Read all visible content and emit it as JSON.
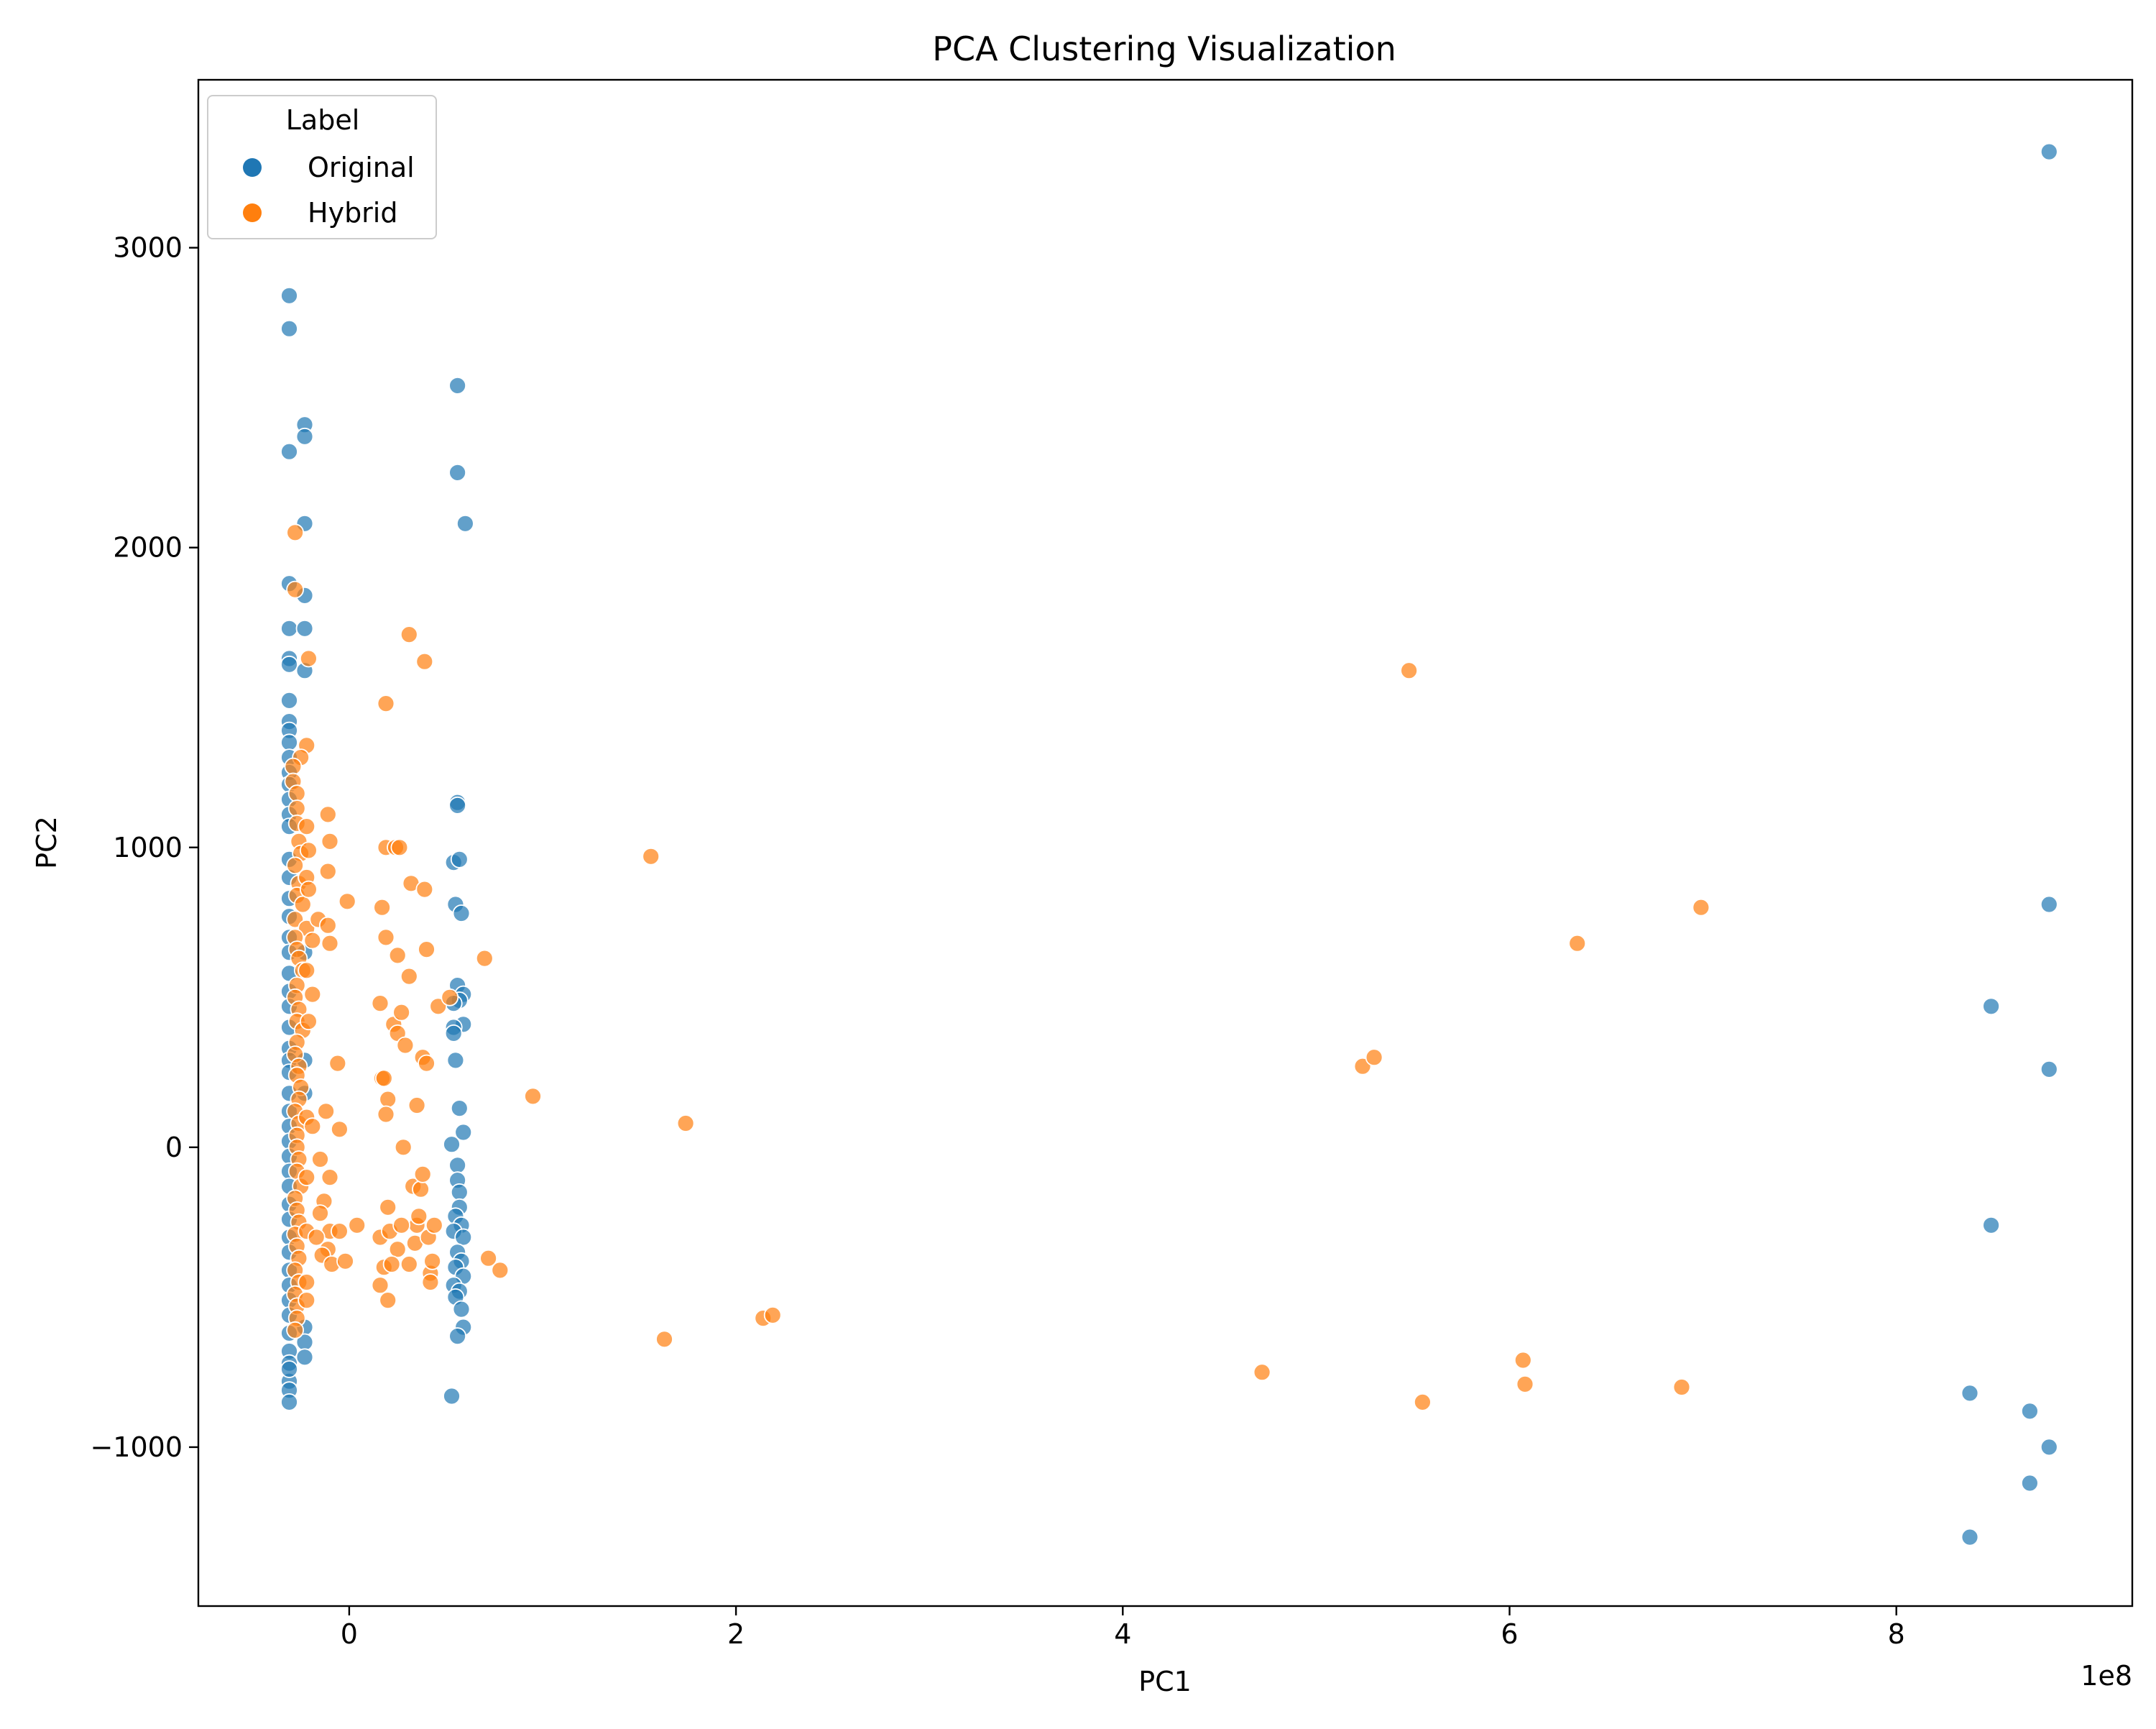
{
  "chart_data": {
    "type": "scatter",
    "title": "PCA Clustering Visualization",
    "xlabel": "PC1",
    "ylabel": "PC2",
    "x_offset_label": "1e8",
    "x_unit_multiplier": 100000000,
    "xlim": [
      -0.78,
      9.22
    ],
    "ylim": [
      -1530,
      3560
    ],
    "x_ticks": [
      0,
      2,
      4,
      6,
      8
    ],
    "x_tick_labels": [
      "0",
      "2",
      "4",
      "6",
      "8"
    ],
    "y_ticks": [
      -1000,
      0,
      1000,
      2000,
      3000
    ],
    "y_tick_labels": [
      "−1000",
      "0",
      "1000",
      "2000",
      "3000"
    ],
    "grid": false,
    "legend": {
      "title": "Label",
      "placement": "upper-left",
      "entries": [
        "Original",
        "Hybrid"
      ]
    },
    "series": [
      {
        "name": "Original",
        "color": "#1f77b4",
        "points": [
          [
            -0.31,
            2840
          ],
          [
            -0.31,
            2730
          ],
          [
            -0.31,
            2320
          ],
          [
            -0.31,
            1880
          ],
          [
            -0.31,
            1730
          ],
          [
            -0.31,
            1630
          ],
          [
            -0.31,
            1610
          ],
          [
            -0.31,
            1490
          ],
          [
            -0.31,
            1420
          ],
          [
            -0.31,
            1390
          ],
          [
            -0.31,
            1350
          ],
          [
            -0.31,
            1300
          ],
          [
            -0.31,
            1250
          ],
          [
            -0.31,
            1210
          ],
          [
            -0.31,
            1160
          ],
          [
            -0.31,
            1110
          ],
          [
            -0.31,
            1070
          ],
          [
            -0.31,
            960
          ],
          [
            -0.31,
            900
          ],
          [
            -0.31,
            830
          ],
          [
            -0.31,
            770
          ],
          [
            -0.31,
            700
          ],
          [
            -0.31,
            650
          ],
          [
            -0.31,
            580
          ],
          [
            -0.31,
            520
          ],
          [
            -0.31,
            470
          ],
          [
            -0.31,
            400
          ],
          [
            -0.31,
            330
          ],
          [
            -0.31,
            290
          ],
          [
            -0.31,
            250
          ],
          [
            -0.31,
            180
          ],
          [
            -0.31,
            120
          ],
          [
            -0.31,
            70
          ],
          [
            -0.31,
            20
          ],
          [
            -0.31,
            -30
          ],
          [
            -0.31,
            -80
          ],
          [
            -0.31,
            -130
          ],
          [
            -0.31,
            -190
          ],
          [
            -0.31,
            -240
          ],
          [
            -0.31,
            -300
          ],
          [
            -0.31,
            -350
          ],
          [
            -0.31,
            -410
          ],
          [
            -0.31,
            -460
          ],
          [
            -0.31,
            -510
          ],
          [
            -0.31,
            -560
          ],
          [
            -0.31,
            -620
          ],
          [
            -0.31,
            -680
          ],
          [
            -0.31,
            -720
          ],
          [
            -0.31,
            -780
          ],
          [
            -0.31,
            -810
          ],
          [
            -0.31,
            -850
          ],
          [
            -0.31,
            -740
          ],
          [
            -0.23,
            2410
          ],
          [
            -0.23,
            2370
          ],
          [
            -0.23,
            2080
          ],
          [
            -0.23,
            1840
          ],
          [
            -0.23,
            1730
          ],
          [
            -0.23,
            1590
          ],
          [
            -0.23,
            650
          ],
          [
            -0.23,
            290
          ],
          [
            -0.23,
            180
          ],
          [
            -0.23,
            -600
          ],
          [
            -0.23,
            -650
          ],
          [
            -0.23,
            -700
          ],
          [
            0.56,
            2540
          ],
          [
            0.56,
            2250
          ],
          [
            0.6,
            2080
          ],
          [
            0.56,
            1150
          ],
          [
            0.56,
            1140
          ],
          [
            0.54,
            950
          ],
          [
            0.57,
            960
          ],
          [
            0.55,
            810
          ],
          [
            0.58,
            780
          ],
          [
            0.56,
            540
          ],
          [
            0.59,
            510
          ],
          [
            0.57,
            490
          ],
          [
            0.54,
            480
          ],
          [
            0.59,
            410
          ],
          [
            0.54,
            400
          ],
          [
            0.54,
            380
          ],
          [
            0.55,
            290
          ],
          [
            0.57,
            130
          ],
          [
            0.59,
            50
          ],
          [
            0.53,
            10
          ],
          [
            0.56,
            -60
          ],
          [
            0.56,
            -110
          ],
          [
            0.57,
            -150
          ],
          [
            0.57,
            -200
          ],
          [
            0.55,
            -230
          ],
          [
            0.58,
            -260
          ],
          [
            0.54,
            -280
          ],
          [
            0.59,
            -300
          ],
          [
            0.56,
            -350
          ],
          [
            0.58,
            -380
          ],
          [
            0.55,
            -400
          ],
          [
            0.59,
            -430
          ],
          [
            0.54,
            -460
          ],
          [
            0.57,
            -480
          ],
          [
            0.55,
            -500
          ],
          [
            0.58,
            -540
          ],
          [
            0.59,
            -600
          ],
          [
            0.56,
            -630
          ],
          [
            0.53,
            -830
          ],
          [
            8.79,
            3320
          ],
          [
            8.79,
            810
          ],
          [
            8.49,
            470
          ],
          [
            8.79,
            260
          ],
          [
            8.49,
            -260
          ],
          [
            8.38,
            -820
          ],
          [
            8.69,
            -880
          ],
          [
            8.79,
            -1000
          ],
          [
            8.69,
            -1120
          ],
          [
            8.38,
            -1300
          ]
        ]
      },
      {
        "name": "Hybrid",
        "color": "#ff7f0e",
        "points": [
          [
            -0.28,
            2050
          ],
          [
            -0.28,
            1860
          ],
          [
            -0.21,
            1630
          ],
          [
            -0.22,
            1340
          ],
          [
            -0.25,
            1300
          ],
          [
            -0.29,
            1270
          ],
          [
            -0.29,
            1220
          ],
          [
            -0.27,
            1180
          ],
          [
            -0.27,
            1130
          ],
          [
            -0.27,
            1080
          ],
          [
            -0.26,
            1020
          ],
          [
            -0.25,
            980
          ],
          [
            -0.28,
            940
          ],
          [
            -0.26,
            880
          ],
          [
            -0.27,
            840
          ],
          [
            -0.24,
            810
          ],
          [
            -0.28,
            760
          ],
          [
            -0.22,
            730
          ],
          [
            -0.28,
            700
          ],
          [
            -0.27,
            660
          ],
          [
            -0.26,
            630
          ],
          [
            -0.24,
            590
          ],
          [
            -0.27,
            540
          ],
          [
            -0.28,
            500
          ],
          [
            -0.26,
            460
          ],
          [
            -0.27,
            420
          ],
          [
            -0.24,
            390
          ],
          [
            -0.27,
            350
          ],
          [
            -0.28,
            310
          ],
          [
            -0.26,
            270
          ],
          [
            -0.27,
            240
          ],
          [
            -0.25,
            200
          ],
          [
            -0.26,
            160
          ],
          [
            -0.28,
            120
          ],
          [
            -0.26,
            80
          ],
          [
            -0.27,
            40
          ],
          [
            -0.27,
            0
          ],
          [
            -0.26,
            -40
          ],
          [
            -0.27,
            -80
          ],
          [
            -0.25,
            -130
          ],
          [
            -0.28,
            -170
          ],
          [
            -0.27,
            -210
          ],
          [
            -0.26,
            -250
          ],
          [
            -0.28,
            -290
          ],
          [
            -0.27,
            -330
          ],
          [
            -0.26,
            -370
          ],
          [
            -0.28,
            -410
          ],
          [
            -0.26,
            -450
          ],
          [
            -0.28,
            -490
          ],
          [
            -0.27,
            -530
          ],
          [
            -0.27,
            -570
          ],
          [
            -0.28,
            -610
          ],
          [
            -0.22,
            1070
          ],
          [
            -0.21,
            990
          ],
          [
            -0.22,
            900
          ],
          [
            -0.21,
            860
          ],
          [
            -0.22,
            590
          ],
          [
            -0.21,
            420
          ],
          [
            -0.22,
            100
          ],
          [
            -0.22,
            -100
          ],
          [
            -0.22,
            -280
          ],
          [
            -0.22,
            -450
          ],
          [
            -0.22,
            -510
          ],
          [
            -0.11,
            1110
          ],
          [
            -0.1,
            1020
          ],
          [
            -0.11,
            920
          ],
          [
            -0.16,
            760
          ],
          [
            -0.11,
            740
          ],
          [
            -0.1,
            680
          ],
          [
            -0.19,
            690
          ],
          [
            -0.19,
            510
          ],
          [
            -0.06,
            280
          ],
          [
            -0.12,
            120
          ],
          [
            -0.19,
            70
          ],
          [
            -0.05,
            60
          ],
          [
            -0.15,
            -40
          ],
          [
            -0.1,
            -100
          ],
          [
            -0.13,
            -180
          ],
          [
            -0.15,
            -220
          ],
          [
            -0.1,
            -280
          ],
          [
            -0.17,
            -300
          ],
          [
            -0.11,
            -340
          ],
          [
            -0.14,
            -360
          ],
          [
            -0.09,
            -390
          ],
          [
            -0.05,
            -280
          ],
          [
            0.04,
            -260
          ],
          [
            -0.02,
            -380
          ],
          [
            -0.01,
            820
          ],
          [
            0.16,
            480
          ],
          [
            0.17,
            800
          ],
          [
            0.17,
            230
          ],
          [
            0.18,
            230
          ],
          [
            0.19,
            700
          ],
          [
            0.19,
            1480
          ],
          [
            0.19,
            1000
          ],
          [
            0.2,
            160
          ],
          [
            0.19,
            110
          ],
          [
            0.2,
            -200
          ],
          [
            0.16,
            -300
          ],
          [
            0.16,
            -460
          ],
          [
            0.18,
            -400
          ],
          [
            0.2,
            -510
          ],
          [
            0.21,
            -280
          ],
          [
            0.23,
            410
          ],
          [
            0.24,
            1000
          ],
          [
            0.25,
            640
          ],
          [
            0.25,
            380
          ],
          [
            0.26,
            1000
          ],
          [
            0.27,
            450
          ],
          [
            0.28,
            0
          ],
          [
            0.29,
            340
          ],
          [
            0.31,
            1710
          ],
          [
            0.31,
            570
          ],
          [
            0.32,
            880
          ],
          [
            0.33,
            -130
          ],
          [
            0.34,
            -320
          ],
          [
            0.35,
            140
          ],
          [
            0.35,
            -260
          ],
          [
            0.36,
            -230
          ],
          [
            0.37,
            -140
          ],
          [
            0.38,
            -90
          ],
          [
            0.38,
            300
          ],
          [
            0.39,
            860
          ],
          [
            0.39,
            1620
          ],
          [
            0.4,
            660
          ],
          [
            0.4,
            280
          ],
          [
            0.41,
            -300
          ],
          [
            0.42,
            -420
          ],
          [
            0.42,
            -450
          ],
          [
            0.43,
            -380
          ],
          [
            0.44,
            -260
          ],
          [
            0.46,
            470
          ],
          [
            0.52,
            500
          ],
          [
            0.7,
            630
          ],
          [
            0.72,
            -370
          ],
          [
            0.78,
            -410
          ],
          [
            0.27,
            -260
          ],
          [
            0.25,
            -340
          ],
          [
            0.22,
            -390
          ],
          [
            0.31,
            -390
          ],
          [
            0.95,
            170
          ],
          [
            1.56,
            970
          ],
          [
            1.63,
            -640
          ],
          [
            1.74,
            80
          ],
          [
            2.14,
            -570
          ],
          [
            2.19,
            -560
          ],
          [
            4.72,
            -750
          ],
          [
            5.24,
            270
          ],
          [
            5.3,
            300
          ],
          [
            5.48,
            1590
          ],
          [
            5.55,
            -850
          ],
          [
            6.07,
            -710
          ],
          [
            6.08,
            -790
          ],
          [
            6.35,
            680
          ],
          [
            6.89,
            -800
          ],
          [
            6.99,
            800
          ]
        ]
      }
    ]
  }
}
